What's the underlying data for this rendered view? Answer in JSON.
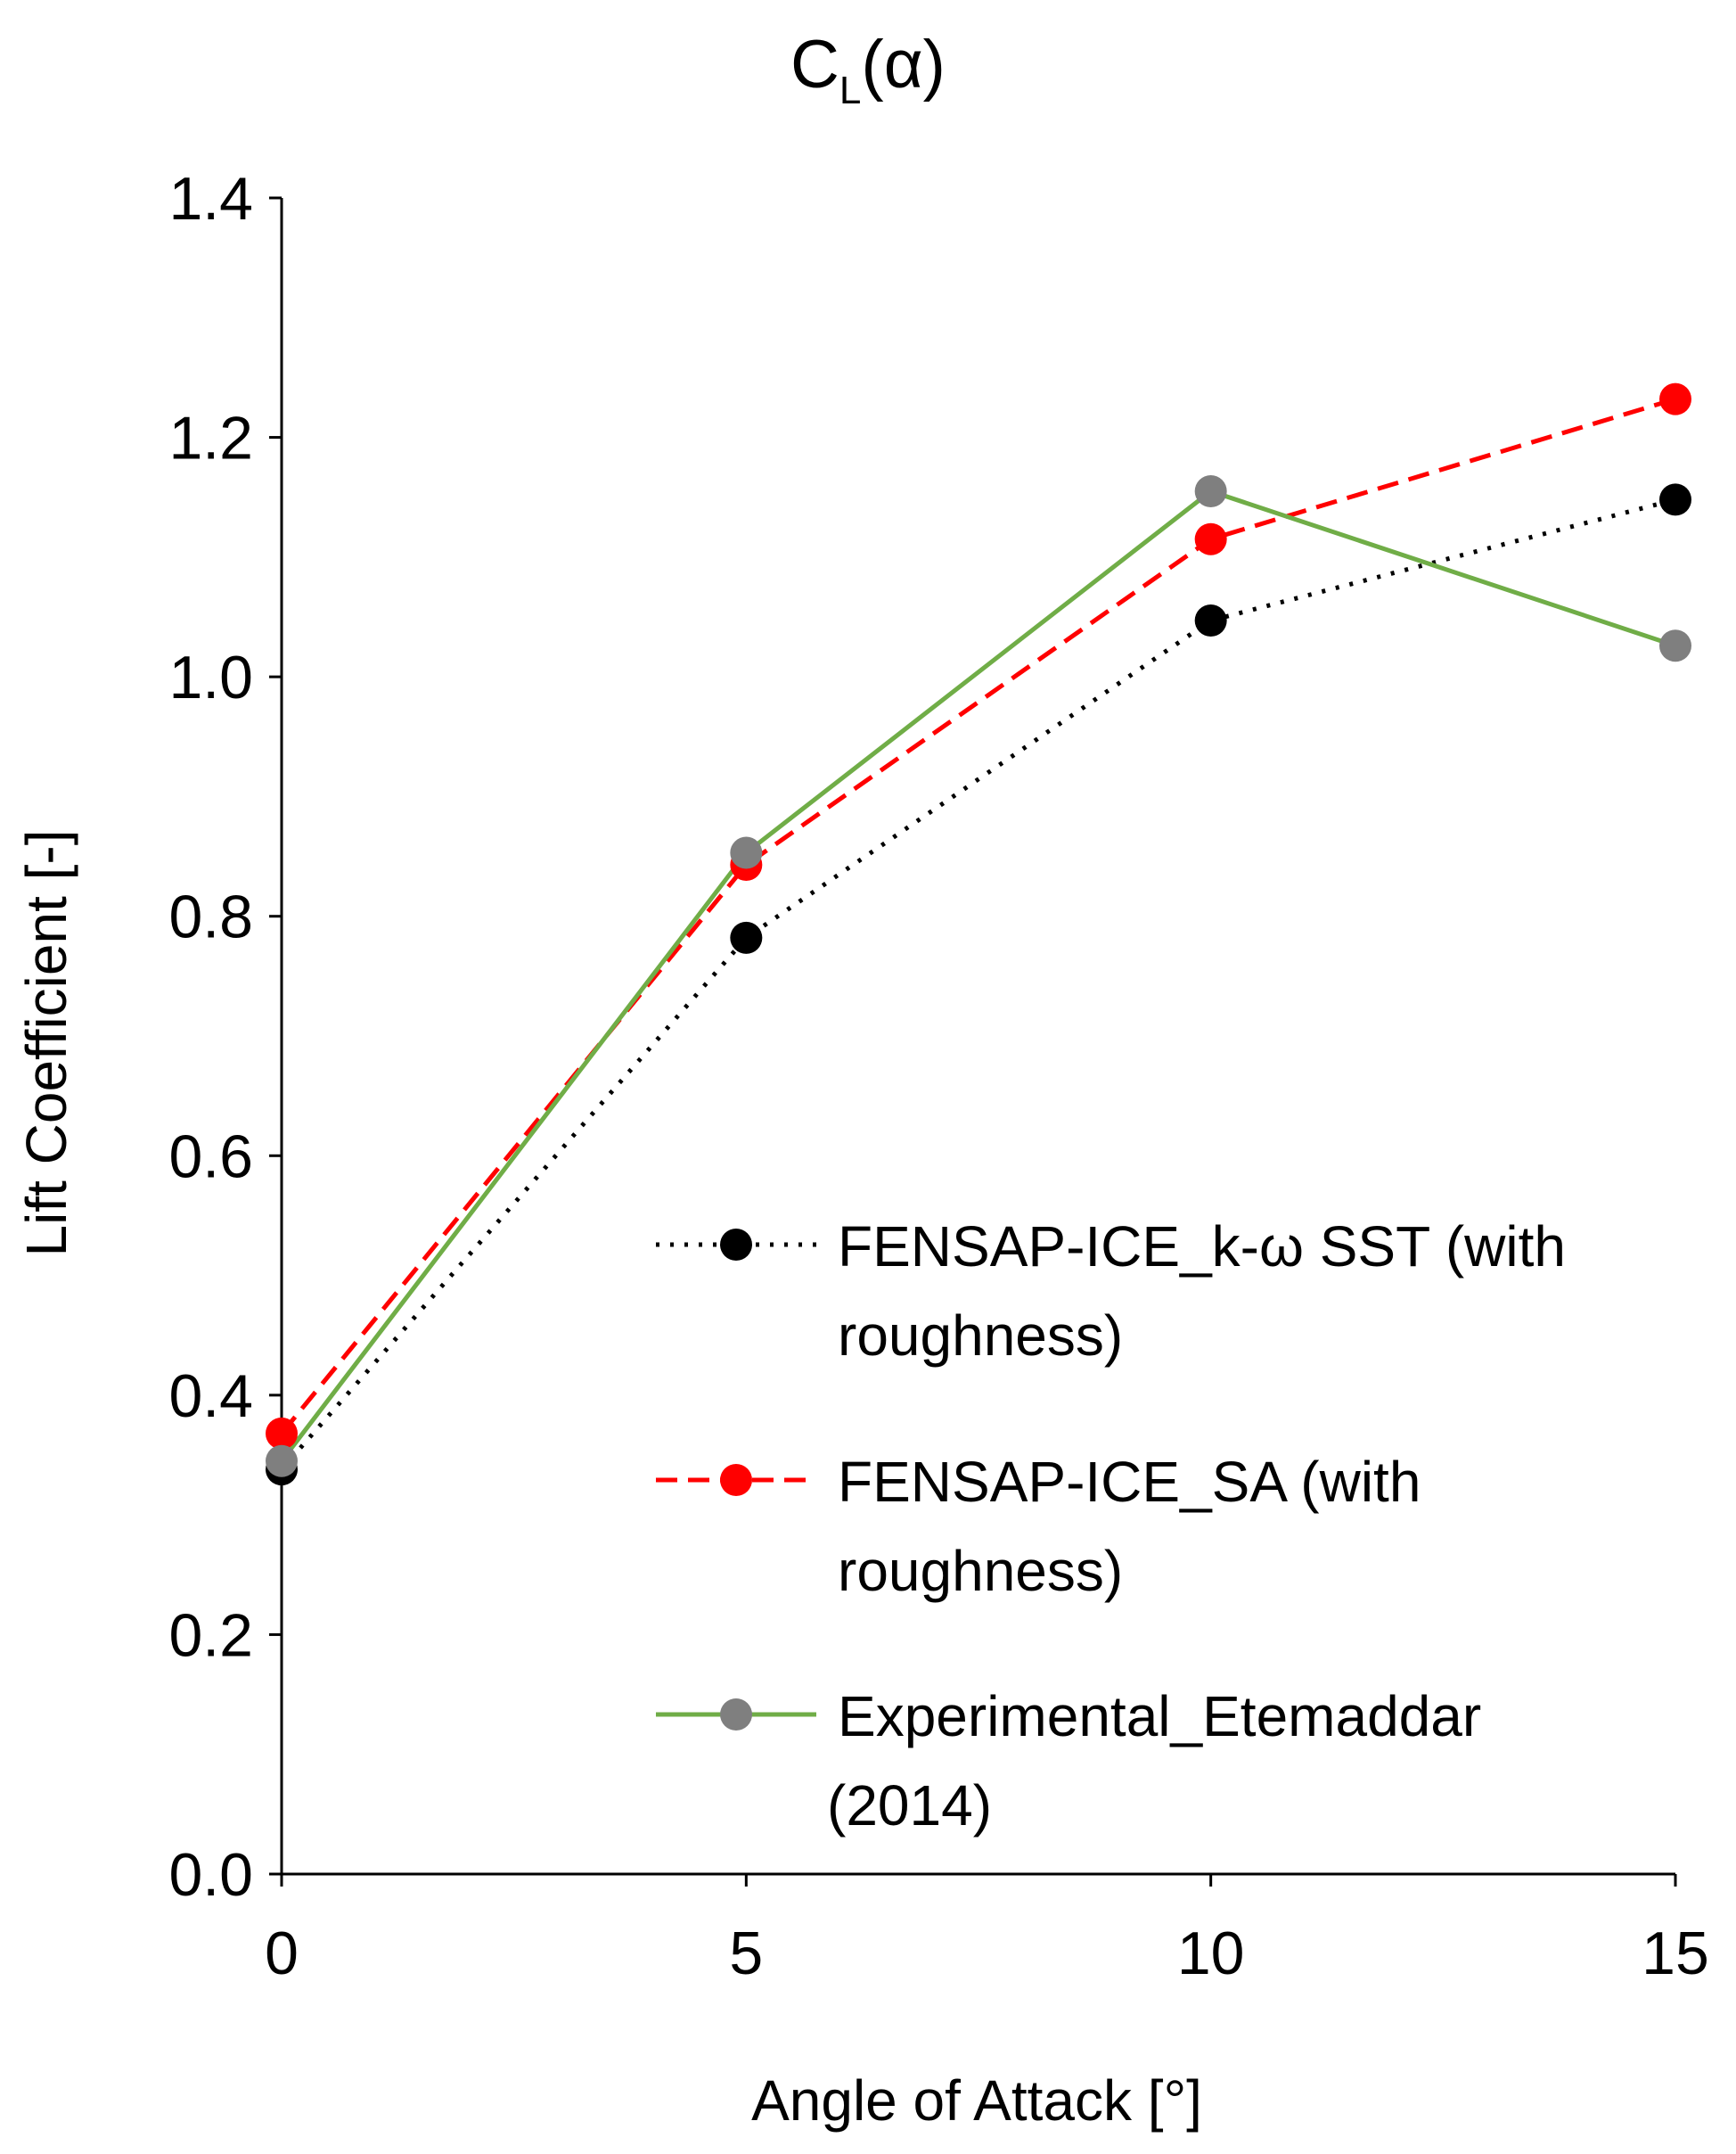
{
  "chart_data": {
    "type": "line",
    "title": {
      "main": "C",
      "sub": "L",
      "suffix": "(α)"
    },
    "xlabel": "Angle of Attack [°]",
    "ylabel": "Lift Coefficient [-]",
    "x": [
      0,
      5,
      10,
      15
    ],
    "xticks": [
      "0",
      "5",
      "10",
      "15"
    ],
    "yticks": [
      "0.0",
      "0.2",
      "0.4",
      "0.6",
      "0.8",
      "1.0",
      "1.2",
      "1.4"
    ],
    "xlim": [
      0,
      15
    ],
    "ylim": [
      0,
      1.4
    ],
    "grid": false,
    "legend_position": "lower-right",
    "series": [
      {
        "name": "FENSAP-ICE_k-ω SST (with roughness)",
        "legend_lines": [
          "FENSAP-ICE_k-ω  SST (with",
          "roughness)"
        ],
        "values": [
          0.338,
          0.782,
          1.047,
          1.148
        ],
        "line_color": "#000000",
        "marker_color": "#000000",
        "dash": "dotted"
      },
      {
        "name": "FENSAP-ICE_SA (with roughness)",
        "legend_lines": [
          "FENSAP-ICE_SA (with",
          "roughness)"
        ],
        "values": [
          0.368,
          0.843,
          1.115,
          1.232
        ],
        "line_color": "#ff0000",
        "marker_color": "#ff0000",
        "dash": "dashed"
      },
      {
        "name": "Experimental_Etemaddar (2014)",
        "legend_lines": [
          "Experimental_Etemaddar",
          "(2014)"
        ],
        "values": [
          0.345,
          0.853,
          1.155,
          1.026
        ],
        "line_color": "#70ad47",
        "marker_color": "#7f7f7f",
        "dash": "solid"
      }
    ]
  }
}
